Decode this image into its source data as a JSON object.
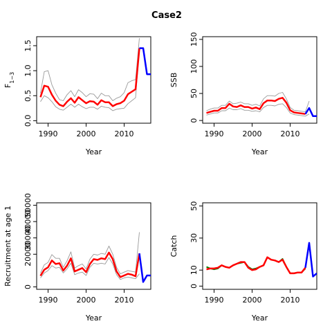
{
  "figure": {
    "title": "Case2"
  },
  "colors": {
    "estimate": "#ff0000",
    "bounds": "#999999",
    "projection": "#0000ff",
    "observed": "#007f00",
    "axis": "#000000"
  },
  "chart_data": [
    {
      "id": "f",
      "type": "line",
      "xlabel": "Year",
      "ylabel": "F",
      "ylabel_sub": "1−3",
      "xlim": [
        1987,
        2017
      ],
      "ylim": [
        -0.05,
        1.68
      ],
      "xticks": [
        1990,
        2000,
        2010
      ],
      "yticks": [
        0.0,
        0.5,
        1.0,
        1.5
      ],
      "ytick_labels": [
        "0.0",
        "0.5",
        "1.0",
        "1.5"
      ],
      "series": [
        {
          "role": "upper",
          "x": [
            1988,
            1989,
            1990,
            1991,
            1992,
            1993,
            1994,
            1995,
            1996,
            1997,
            1998,
            1999,
            2000,
            2001,
            2002,
            2003,
            2004,
            2005,
            2006,
            2007,
            2008,
            2009,
            2010,
            2011,
            2012,
            2013,
            2014
          ],
          "y": [
            0.55,
            0.98,
            1.0,
            0.72,
            0.55,
            0.42,
            0.4,
            0.52,
            0.6,
            0.48,
            0.62,
            0.56,
            0.48,
            0.54,
            0.53,
            0.44,
            0.55,
            0.5,
            0.5,
            0.4,
            0.45,
            0.48,
            0.56,
            0.76,
            0.8,
            0.82,
            1.65
          ]
        },
        {
          "role": "lower",
          "x": [
            1988,
            1989,
            1990,
            1991,
            1992,
            1993,
            1994,
            1995,
            1996,
            1997,
            1998,
            1999,
            2000,
            2001,
            2002,
            2003,
            2004,
            2005,
            2006,
            2007,
            2008,
            2009,
            2010,
            2011,
            2012,
            2013,
            2014
          ],
          "y": [
            0.38,
            0.5,
            0.46,
            0.38,
            0.28,
            0.23,
            0.21,
            0.27,
            0.33,
            0.27,
            0.33,
            0.28,
            0.24,
            0.27,
            0.27,
            0.23,
            0.29,
            0.27,
            0.26,
            0.2,
            0.23,
            0.24,
            0.25,
            0.34,
            0.4,
            0.46,
            1.42
          ]
        },
        {
          "role": "estimate",
          "x": [
            1988,
            1989,
            1990,
            1991,
            1992,
            1993,
            1994,
            1995,
            1996,
            1997,
            1998,
            1999,
            2000,
            2001,
            2002,
            2003,
            2004,
            2005,
            2006,
            2007,
            2008,
            2009,
            2010,
            2011,
            2012,
            2013,
            2014
          ],
          "y": [
            0.47,
            0.7,
            0.68,
            0.52,
            0.4,
            0.32,
            0.29,
            0.38,
            0.45,
            0.36,
            0.47,
            0.41,
            0.35,
            0.39,
            0.38,
            0.32,
            0.41,
            0.37,
            0.37,
            0.29,
            0.33,
            0.35,
            0.4,
            0.53,
            0.58,
            0.63,
            1.45
          ]
        },
        {
          "role": "projection",
          "x": [
            2014,
            2015,
            2016,
            2017
          ],
          "y": [
            1.45,
            1.45,
            0.93,
            0.93
          ]
        }
      ]
    },
    {
      "id": "ssb",
      "type": "line",
      "xlabel": "Year",
      "ylabel": "SSB",
      "xlim": [
        1987,
        2017
      ],
      "ylim": [
        -5,
        155
      ],
      "xticks": [
        1990,
        2000,
        2010
      ],
      "yticks": [
        0,
        50,
        100,
        150
      ],
      "ytick_labels": [
        "0",
        "50",
        "100",
        "150"
      ],
      "series": [
        {
          "role": "upper",
          "x": [
            1988,
            1989,
            1990,
            1991,
            1992,
            1993,
            1994,
            1995,
            1996,
            1997,
            1998,
            1999,
            2000,
            2001,
            2002,
            2003,
            2004,
            2005,
            2006,
            2007,
            2008,
            2009,
            2010,
            2011,
            2012,
            2013,
            2014,
            2015
          ],
          "y": [
            18,
            21,
            23,
            23,
            28,
            28,
            36,
            31,
            32,
            34,
            31,
            31,
            28,
            30,
            27,
            40,
            46,
            46,
            45,
            50,
            52,
            40,
            24,
            19,
            18,
            17,
            16,
            36
          ]
        },
        {
          "role": "lower",
          "x": [
            1988,
            1989,
            1990,
            1991,
            1992,
            1993,
            1994,
            1995,
            1996,
            1997,
            1998,
            1999,
            2000,
            2001,
            2002,
            2003,
            2004,
            2005,
            2006,
            2007,
            2008,
            2009,
            2010,
            2011,
            2012,
            2013,
            2014,
            2015
          ],
          "y": [
            10,
            12,
            14,
            14,
            18,
            18,
            23,
            20,
            20,
            22,
            19,
            19,
            17,
            18,
            16,
            24,
            28,
            28,
            27,
            30,
            31,
            24,
            14,
            11,
            10,
            9,
            8,
            12
          ]
        },
        {
          "role": "estimate",
          "x": [
            1988,
            1989,
            1990,
            1991,
            1992,
            1993,
            1994,
            1995,
            1996,
            1997,
            1998,
            1999,
            2000,
            2001,
            2002,
            2003,
            2004,
            2005,
            2006,
            2007,
            2008,
            2009,
            2010,
            2011,
            2012,
            2013,
            2014
          ],
          "y": [
            14,
            16,
            18,
            18,
            23,
            23,
            31,
            26,
            25,
            28,
            25,
            25,
            22,
            24,
            21,
            32,
            37,
            37,
            36,
            40,
            42,
            33,
            19,
            15,
            14,
            13,
            12
          ]
        },
        {
          "role": "projection",
          "x": [
            2014,
            2015,
            2016,
            2017
          ],
          "y": [
            12,
            23,
            8,
            8
          ]
        }
      ]
    },
    {
      "id": "recruitment",
      "type": "line",
      "xlabel": "Year",
      "ylabel": "Recruitment at age 1",
      "xlim": [
        1987,
        2017
      ],
      "ylim": [
        -1500,
        51500
      ],
      "xticks": [
        1990,
        2000,
        2010
      ],
      "yticks": [
        0,
        20000,
        30000,
        40000,
        50000
      ],
      "ytick_labels": [
        "0",
        "20000",
        "30000",
        "40000",
        "50000"
      ],
      "series": [
        {
          "role": "upper",
          "x": [
            1988,
            1989,
            1990,
            1991,
            1992,
            1993,
            1994,
            1995,
            1996,
            1997,
            1998,
            1999,
            2000,
            2001,
            2002,
            2003,
            2004,
            2005,
            2006,
            2007,
            2008,
            2009,
            2010,
            2011,
            2012,
            2013,
            2014
          ],
          "y": [
            8500,
            13500,
            15000,
            19800,
            17500,
            17500,
            12000,
            16000,
            21500,
            11500,
            13000,
            14000,
            11000,
            17000,
            20000,
            19500,
            20500,
            20000,
            25000,
            20000,
            12000,
            8000,
            9000,
            10000,
            9500,
            9000,
            33500
          ]
        },
        {
          "role": "lower",
          "x": [
            1988,
            1989,
            1990,
            1991,
            1992,
            1993,
            1994,
            1995,
            1996,
            1997,
            1998,
            1999,
            2000,
            2001,
            2002,
            2003,
            2004,
            2005,
            2006,
            2007,
            2008,
            2009,
            2010,
            2011,
            2012,
            2013,
            2014
          ],
          "y": [
            5500,
            8500,
            10000,
            13000,
            11500,
            12000,
            8500,
            11000,
            14500,
            7500,
            8500,
            9000,
            7000,
            12000,
            14500,
            14000,
            14500,
            14000,
            18000,
            14000,
            7500,
            4500,
            5500,
            6000,
            5500,
            5000,
            8000
          ]
        },
        {
          "role": "estimate",
          "x": [
            1988,
            1989,
            1990,
            1991,
            1992,
            1993,
            1994,
            1995,
            1996,
            1997,
            1998,
            1999,
            2000,
            2001,
            2002,
            2003,
            2004,
            2005,
            2006,
            2007,
            2008,
            2009,
            2010,
            2011,
            2012,
            2013,
            2014
          ],
          "y": [
            6800,
            10500,
            12000,
            16200,
            14000,
            14500,
            10000,
            13000,
            17500,
            9500,
            10500,
            11500,
            9000,
            14000,
            17000,
            16500,
            17500,
            17000,
            21000,
            17000,
            9500,
            6000,
            7000,
            8000,
            7500,
            6500,
            20500
          ]
        },
        {
          "role": "projection",
          "x": [
            2014,
            2015,
            2016,
            2017
          ],
          "y": [
            20500,
            3000,
            7000,
            7000
          ]
        }
      ]
    },
    {
      "id": "catch",
      "type": "line",
      "xlabel": "Year",
      "ylabel": "Catch",
      "xlim": [
        1987,
        2017
      ],
      "ylim": [
        -2,
        52
      ],
      "xticks": [
        1990,
        2000,
        2010
      ],
      "yticks": [
        0,
        10,
        30,
        50
      ],
      "ytick_labels": [
        "0",
        "10",
        "30",
        "50"
      ],
      "series": [
        {
          "role": "observed",
          "x": [
            1988,
            1989,
            1990,
            1991,
            1992,
            1993,
            1994,
            1995,
            1996,
            1997,
            1998,
            1999,
            2000,
            2001,
            2002,
            2003,
            2004,
            2005,
            2006,
            2007,
            2008,
            2009,
            2010,
            2011,
            2012,
            2013,
            2014
          ],
          "y": [
            12,
            11,
            10.5,
            11,
            13,
            12,
            11.5,
            13,
            14,
            14.5,
            15,
            12,
            10.5,
            11,
            12,
            13,
            18,
            16.5,
            16,
            15,
            17,
            12,
            8,
            8,
            8.5,
            8.5,
            11
          ]
        },
        {
          "role": "estimate",
          "x": [
            1988,
            1989,
            1990,
            1991,
            1992,
            1993,
            1994,
            1995,
            1996,
            1997,
            1998,
            1999,
            2000,
            2001,
            2002,
            2003,
            2004,
            2005,
            2006,
            2007,
            2008,
            2009,
            2010,
            2011,
            2012,
            2013,
            2014
          ],
          "y": [
            10.5,
            11,
            11,
            11.5,
            13,
            12,
            11.5,
            13,
            14,
            15,
            15,
            11.5,
            10,
            10.5,
            12,
            13,
            18,
            16.5,
            16,
            15,
            16.5,
            12,
            8,
            8,
            8.5,
            8.5,
            11.5
          ]
        },
        {
          "role": "projection",
          "x": [
            2014,
            2015,
            2016,
            2017
          ],
          "y": [
            11.5,
            27,
            6,
            8
          ]
        }
      ]
    }
  ]
}
